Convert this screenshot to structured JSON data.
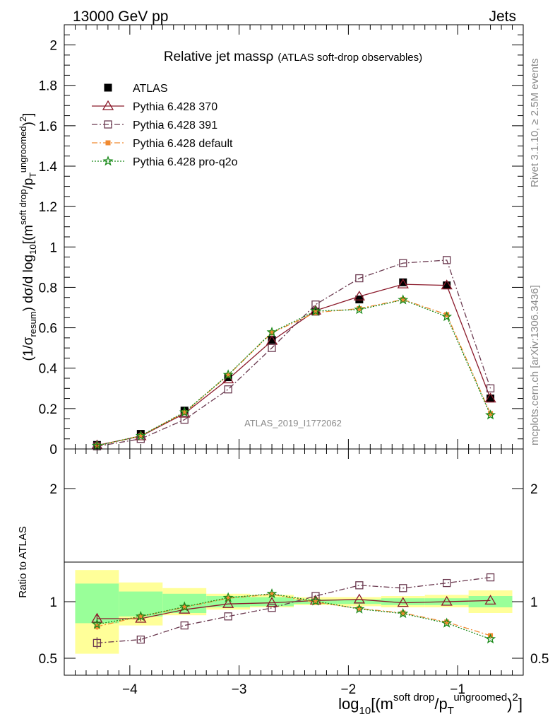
{
  "header": {
    "energy_label": "13000 GeV pp",
    "category_label": "Jets"
  },
  "side_labels": {
    "rivet": "Rivet 3.1.10, ≥ 2.5M events",
    "mcplots": "mcplots.cern.ch [arXiv:1306.3436]"
  },
  "watermark": "ATLAS_2019_I1772062",
  "chart_data": [
    {
      "type": "line",
      "title": "Relative jet massρ",
      "subtitle": "(ATLAS soft-drop observables)",
      "ylabel": "(1/σresum) dσ/d log10[(m soft drop/pT ungroomed)2]",
      "ylim": [
        0,
        2.1
      ],
      "xlim": [
        -4.6,
        -0.4
      ],
      "x_ticks": [
        -4,
        -3,
        -2,
        -1
      ],
      "y_ticks": [
        0,
        0.2,
        0.4,
        0.6,
        0.8,
        1,
        1.2,
        1.4,
        1.6,
        1.8,
        2
      ],
      "y_tick_labels": [
        "0",
        "0.2",
        "0.4",
        "0.6",
        "0.8",
        "1",
        "1.2",
        "1.4",
        "1.6",
        "1.8",
        "2"
      ],
      "legend_position": "top-left",
      "x": [
        -4.3,
        -3.9,
        -3.5,
        -3.1,
        -2.7,
        -2.3,
        -1.9,
        -1.5,
        -1.1,
        -0.7
      ],
      "series": [
        {
          "name": "ATLAS",
          "style": "data",
          "color": "#000000",
          "values": [
            0.02,
            0.075,
            0.19,
            0.355,
            0.54,
            0.68,
            0.74,
            0.825,
            0.81,
            0.25
          ]
        },
        {
          "name": "Pythia 6.428 370",
          "style": "solid",
          "color": "#8b1a2b",
          "marker": "triangle-open",
          "values": [
            0.018,
            0.063,
            0.175,
            0.345,
            0.535,
            0.685,
            0.755,
            0.815,
            0.81,
            0.25
          ]
        },
        {
          "name": "Pythia 6.428 391",
          "style": "dashdot",
          "color": "#6b3a50",
          "marker": "square-open",
          "values": [
            0.013,
            0.05,
            0.145,
            0.295,
            0.5,
            0.715,
            0.845,
            0.92,
            0.935,
            0.3
          ]
        },
        {
          "name": "Pythia 6.428 default",
          "style": "dashdot",
          "color": "#f08a30",
          "marker": "square-filled",
          "values": [
            0.016,
            0.065,
            0.18,
            0.365,
            0.575,
            0.675,
            0.695,
            0.74,
            0.665,
            0.175
          ]
        },
        {
          "name": "Pythia 6.428 pro-q2o",
          "style": "dotted",
          "color": "#1a8a1a",
          "marker": "star",
          "values": [
            0.016,
            0.065,
            0.182,
            0.367,
            0.578,
            0.683,
            0.69,
            0.738,
            0.655,
            0.168
          ]
        }
      ]
    },
    {
      "type": "line",
      "ylabel": "Ratio to ATLAS",
      "xlabel": "log10[(m soft drop/pT ungroomed)2]",
      "ylim": [
        0.35,
        2.35
      ],
      "xlim": [
        -4.6,
        -0.4
      ],
      "x_ticks": [
        -4,
        -3,
        -2,
        -1
      ],
      "x_tick_labels": [
        "−4",
        "−3",
        "−2",
        "−1"
      ],
      "y_ticks": [
        0.5,
        1,
        2
      ],
      "y_tick_labels": [
        "0.5",
        "1",
        "2"
      ],
      "bins": [
        -4.5,
        -4.1,
        -3.7,
        -3.3,
        -2.9,
        -2.5,
        -2.1,
        -1.7,
        -1.3,
        -0.9,
        -0.5
      ],
      "band_stat": [
        [
          0.81,
          1.16
        ],
        [
          0.87,
          1.09
        ],
        [
          0.9,
          1.07
        ],
        [
          0.95,
          1.05
        ],
        [
          0.96,
          1.04
        ],
        [
          0.98,
          1.02
        ],
        [
          0.98,
          1.02
        ],
        [
          0.97,
          1.03
        ],
        [
          0.97,
          1.03
        ],
        [
          0.95,
          1.05
        ]
      ],
      "band_total": [
        [
          0.54,
          1.28
        ],
        [
          0.79,
          1.17
        ],
        [
          0.88,
          1.12
        ],
        [
          0.93,
          1.07
        ],
        [
          0.95,
          1.06
        ],
        [
          0.97,
          1.04
        ],
        [
          0.96,
          1.04
        ],
        [
          0.95,
          1.05
        ],
        [
          0.95,
          1.06
        ],
        [
          0.9,
          1.1
        ]
      ],
      "band_colors": {
        "total": "#ffff99",
        "stat": "#99ff99"
      },
      "x": [
        -4.3,
        -3.9,
        -3.5,
        -3.1,
        -2.7,
        -2.3,
        -1.9,
        -1.5,
        -1.1,
        -0.7
      ],
      "series": [
        {
          "name": "Pythia 6.428 370",
          "style": "solid",
          "color": "#8b1a2b",
          "marker": "triangle-open",
          "values": [
            0.85,
            0.85,
            0.93,
            0.98,
            0.99,
            1.01,
            1.02,
            0.99,
            1.0,
            1.01
          ],
          "err": [
            0.04,
            0.02,
            0,
            0,
            0,
            0,
            0,
            0,
            0,
            0
          ]
        },
        {
          "name": "Pythia 6.428 391",
          "style": "dashdot",
          "color": "#6b3a50",
          "marker": "square-open",
          "values": [
            0.635,
            0.665,
            0.79,
            0.87,
            0.945,
            1.05,
            1.145,
            1.12,
            1.165,
            1.215
          ],
          "err": [
            0.05,
            0.02,
            0,
            0,
            0,
            0,
            0,
            0,
            0,
            0
          ]
        },
        {
          "name": "Pythia 6.428 default",
          "style": "dashdot",
          "color": "#f08a30",
          "marker": "square-filled",
          "values": [
            0.78,
            0.87,
            0.95,
            1.03,
            1.065,
            0.995,
            0.94,
            0.9,
            0.82,
            0.7
          ],
          "err": [
            0.03,
            0.015,
            0,
            0,
            0,
            0,
            0,
            0,
            0,
            0
          ]
        },
        {
          "name": "Pythia 6.428 pro-q2o",
          "style": "dotted",
          "color": "#1a8a1a",
          "marker": "star",
          "values": [
            0.8,
            0.87,
            0.955,
            1.035,
            1.07,
            1.005,
            0.935,
            0.895,
            0.81,
            0.67
          ],
          "err": [
            0.02,
            0.01,
            0,
            0,
            0,
            0,
            0,
            0,
            0,
            0
          ]
        }
      ]
    }
  ]
}
